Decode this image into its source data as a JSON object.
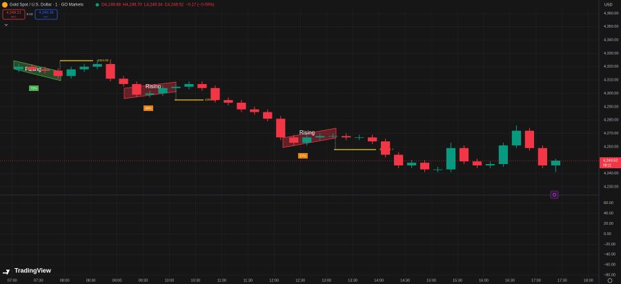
{
  "toolbar": {
    "symbol": "Gold Spot / U.S. Dollar · 1 · GO Markets",
    "quote": [
      "O4,249.68",
      "H4,249.70",
      "L4,249.34",
      "C4,249.52",
      "−0.17 (−0.00%)"
    ],
    "sell": {
      "price": "4,249.21",
      "label": "SELL"
    },
    "spread": "0.13",
    "buy": {
      "price": "4,249.34",
      "label": "BUY"
    },
    "currency": "USD",
    "brand": "TradingView"
  },
  "chart_data": {
    "type": "candlestick",
    "x": [
      "07:00",
      "07:15",
      "07:30",
      "07:45",
      "08:00",
      "08:15",
      "08:30",
      "08:45",
      "09:00",
      "09:15",
      "09:30",
      "09:45",
      "10:00",
      "10:15",
      "10:30",
      "10:45",
      "11:00",
      "11:15",
      "11:30",
      "11:45",
      "12:00",
      "12:15",
      "12:30",
      "12:45",
      "13:00",
      "13:15",
      "13:30",
      "13:45",
      "14:00",
      "14:15",
      "14:30",
      "14:45",
      "15:00",
      "15:15",
      "15:30",
      "15:45",
      "16:00",
      "16:15",
      "16:30",
      "16:45",
      "17:00",
      "17:15"
    ],
    "open": [
      4318,
      4320,
      4318,
      4317,
      4313,
      4318,
      4320,
      4322,
      4311,
      4307,
      4299,
      4300,
      4304,
      4305,
      4307,
      4304,
      4295,
      4293,
      4288,
      4286,
      4281,
      4267,
      4263,
      4267,
      4268,
      4268,
      4267,
      4267,
      4264,
      4254,
      4246,
      4248,
      4243,
      4243,
      4259,
      4249,
      4246,
      4247,
      4261,
      4272,
      4259,
      4246
    ],
    "high": [
      4322,
      4322,
      4320,
      4319,
      4320,
      4322,
      4325,
      4324,
      4313,
      4309,
      4302,
      4306,
      4307,
      4309,
      4309,
      4306,
      4297,
      4295,
      4290,
      4288,
      4283,
      4269,
      4269,
      4270,
      4270,
      4270,
      4269,
      4269,
      4266,
      4256,
      4250,
      4250,
      4245,
      4263,
      4261,
      4251,
      4249,
      4263,
      4276,
      4274,
      4261,
      4251
    ],
    "low": [
      4316,
      4316,
      4315,
      4311,
      4311,
      4316,
      4318,
      4309,
      4305,
      4297,
      4297,
      4298,
      4302,
      4303,
      4302,
      4293,
      4291,
      4286,
      4284,
      4279,
      4265,
      4261,
      4261,
      4265,
      4266,
      4265,
      4265,
      4262,
      4252,
      4244,
      4244,
      4241,
      4241,
      4241,
      4247,
      4244,
      4244,
      4245,
      4259,
      4257,
      4244,
      4241
    ],
    "close": [
      4320,
      4318,
      4317,
      4313,
      4318,
      4320,
      4322,
      4311,
      4307,
      4299,
      4300,
      4304,
      4305,
      4307,
      4304,
      4295,
      4293,
      4288,
      4286,
      4281,
      4267,
      4263,
      4267,
      4268,
      4268,
      4267,
      4267,
      4264,
      4254,
      4246,
      4248,
      4243,
      4243,
      4259,
      4249,
      4246,
      4247,
      4261,
      4272,
      4259,
      4246,
      4249.52
    ],
    "up_color": "#089981",
    "down_color": "#f23645",
    "xlim": [
      "06:46",
      "18:12"
    ],
    "xticks": [
      "07:00",
      "07:30",
      "08:00",
      "08:30",
      "09:00",
      "09:30",
      "10:00",
      "10:30",
      "11:00",
      "11:30",
      "12:00",
      "12:30",
      "13:00",
      "13:30",
      "14:00",
      "14:30",
      "15:00",
      "15:30",
      "16:00",
      "16:30",
      "17:00",
      "17:30",
      "18:00"
    ],
    "ylim": [
      4225,
      4370
    ],
    "yticks": [
      {
        "value": 4230,
        "label": "4,230.00"
      },
      {
        "value": 4240,
        "label": "4,240.00"
      },
      {
        "value": 4260,
        "label": "4,260.00"
      },
      {
        "value": 4270,
        "label": "4,270.00"
      },
      {
        "value": 4280,
        "label": "4,280.00"
      },
      {
        "value": 4290,
        "label": "4,290.00"
      },
      {
        "value": 4300,
        "label": "4,300.00"
      },
      {
        "value": 4310,
        "label": "4,310.00"
      },
      {
        "value": 4320,
        "label": "4,320.00"
      },
      {
        "value": 4330,
        "label": "4,330.00"
      },
      {
        "value": 4340,
        "label": "4,340.00"
      },
      {
        "value": 4350,
        "label": "4,350.00"
      },
      {
        "value": 4360,
        "label": "4,360.00"
      }
    ],
    "y2lim": [
      -88,
      73
    ],
    "y2ticks": [
      {
        "value": 60,
        "label": "60.00"
      },
      {
        "value": 40,
        "label": "40.00"
      },
      {
        "value": 20,
        "label": "20.00"
      },
      {
        "value": 0,
        "label": "0.00"
      },
      {
        "value": -20,
        "label": "−20.00"
      },
      {
        "value": -40,
        "label": "−40.00"
      },
      {
        "value": -60,
        "label": "−60.00"
      },
      {
        "value": -80,
        "label": "−80.00"
      }
    ],
    "last_price": {
      "value": 4249.52,
      "label": "4,249.52"
    },
    "countdown": "00:11",
    "patterns": [
      {
        "label": "Falling",
        "probability": "72%"
      },
      {
        "label": "Rising",
        "probability": "68%"
      },
      {
        "label": "Rising",
        "probability": "57%"
      }
    ],
    "targets": [
      "4324.90 ✓",
      "4291.90",
      "4256.24 ✓"
    ]
  }
}
